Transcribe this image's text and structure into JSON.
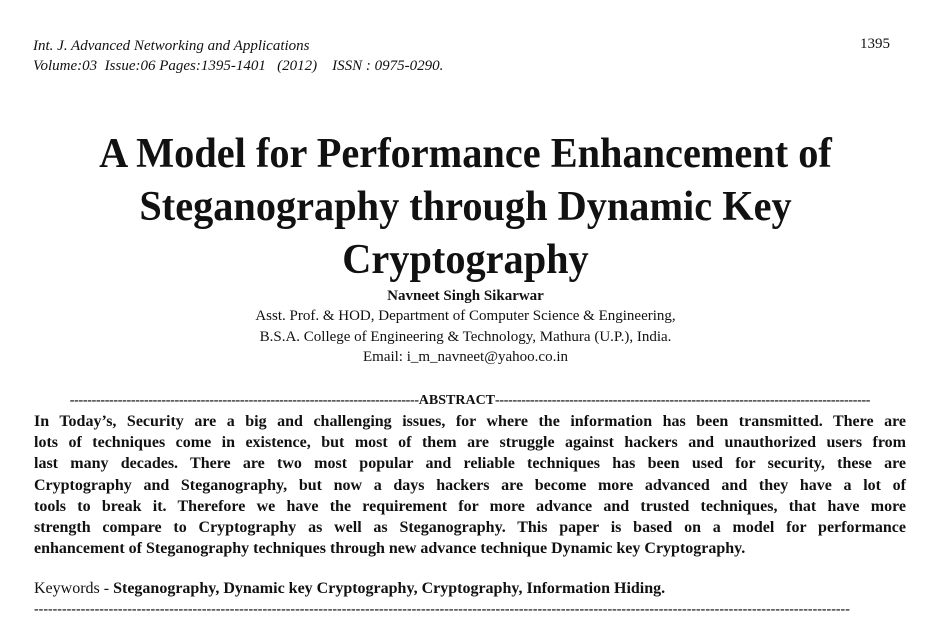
{
  "header": {
    "journal": "Int. J. Advanced Networking and Applications",
    "volume_line": "Volume:03  Issue:06 Pages:1395-1401   (2012)    ISSN : 0975-0290.",
    "page_number": "1395"
  },
  "title_lines": [
    "A Model for Performance Enhancement of",
    "Steganography through Dynamic Key",
    "Cryptography"
  ],
  "author": {
    "name": "Navneet Singh Sikarwar",
    "affiliation_lines": [
      "Asst. Prof. & HOD, Department of Computer Science & Engineering,",
      "B.S.A. College of Engineering & Technology, Mathura (U.P.), India.",
      "Email: i_m_navneet@yahoo.co.in"
    ]
  },
  "abstract": {
    "heading": "ABSTRACT",
    "lines": [
      "In Today’s, Security are a big and challenging issues, for where the information has been transmitted. There are",
      "lots of techniques come in existence, but most of them are struggle against hackers and unauthorized users from",
      "last many decades. There are two most popular and reliable   techniques has been used for security, these are",
      "Cryptography and Steganography, but now a days hackers are become more advanced and they have a lot of",
      "tools to break it. Therefore we have the requirement for more advance and trusted techniques, that have more",
      "strength compare to Cryptography as well as Steganography. This paper is based on a model for performance",
      "enhancement of Steganography techniques through new advance technique Dynamic key Cryptography."
    ]
  },
  "keywords": {
    "label": "Keywords - ",
    "text": "Steganography, Dynamic key Cryptography, Cryptography, Information Hiding."
  }
}
